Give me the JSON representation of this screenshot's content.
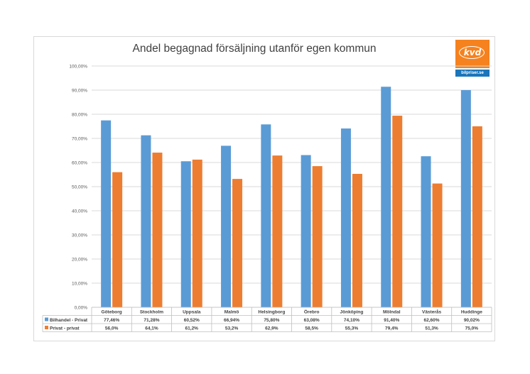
{
  "chart_data": {
    "type": "bar",
    "title": "Andel begagnad försäljning utanför egen kommun",
    "categories": [
      "Göteborg",
      "Stockholm",
      "Uppsala",
      "Malmö",
      "Helsingborg",
      "Örebro",
      "Jönköping",
      "Mölndal",
      "Västerås",
      "Huddinge"
    ],
    "series": [
      {
        "name": "Bilhandel - Privat",
        "color": "#5b9bd5",
        "values": [
          77.46,
          71.28,
          60.52,
          66.94,
          75.8,
          63.08,
          74.1,
          91.4,
          62.6,
          90.02
        ],
        "labels": [
          "77,46%",
          "71,28%",
          "60,52%",
          "66,94%",
          "75,80%",
          "63,08%",
          "74,10%",
          "91,40%",
          "62,60%",
          "90,02%"
        ]
      },
      {
        "name": "Privat - privat",
        "color": "#ed7d31",
        "values": [
          56.0,
          64.1,
          61.2,
          53.2,
          62.9,
          58.5,
          55.3,
          79.4,
          51.3,
          75.0
        ],
        "labels": [
          "56,0%",
          "64,1%",
          "61,2%",
          "53,2%",
          "62,9%",
          "58,5%",
          "55,3%",
          "79,4%",
          "51,3%",
          "75,0%"
        ]
      }
    ],
    "ylim": [
      0,
      100
    ],
    "yticks": [
      "0,00%",
      "10,00%",
      "20,00%",
      "30,00%",
      "40,00%",
      "50,00%",
      "60,00%",
      "70,00%",
      "80,00%",
      "90,00%",
      "100,00%"
    ],
    "grid": true,
    "legend": "data-table-below"
  },
  "logo": {
    "name": "kvd",
    "site": "bilpriser.se",
    "color": "#f5821f",
    "site_color": "#1a75bb"
  }
}
